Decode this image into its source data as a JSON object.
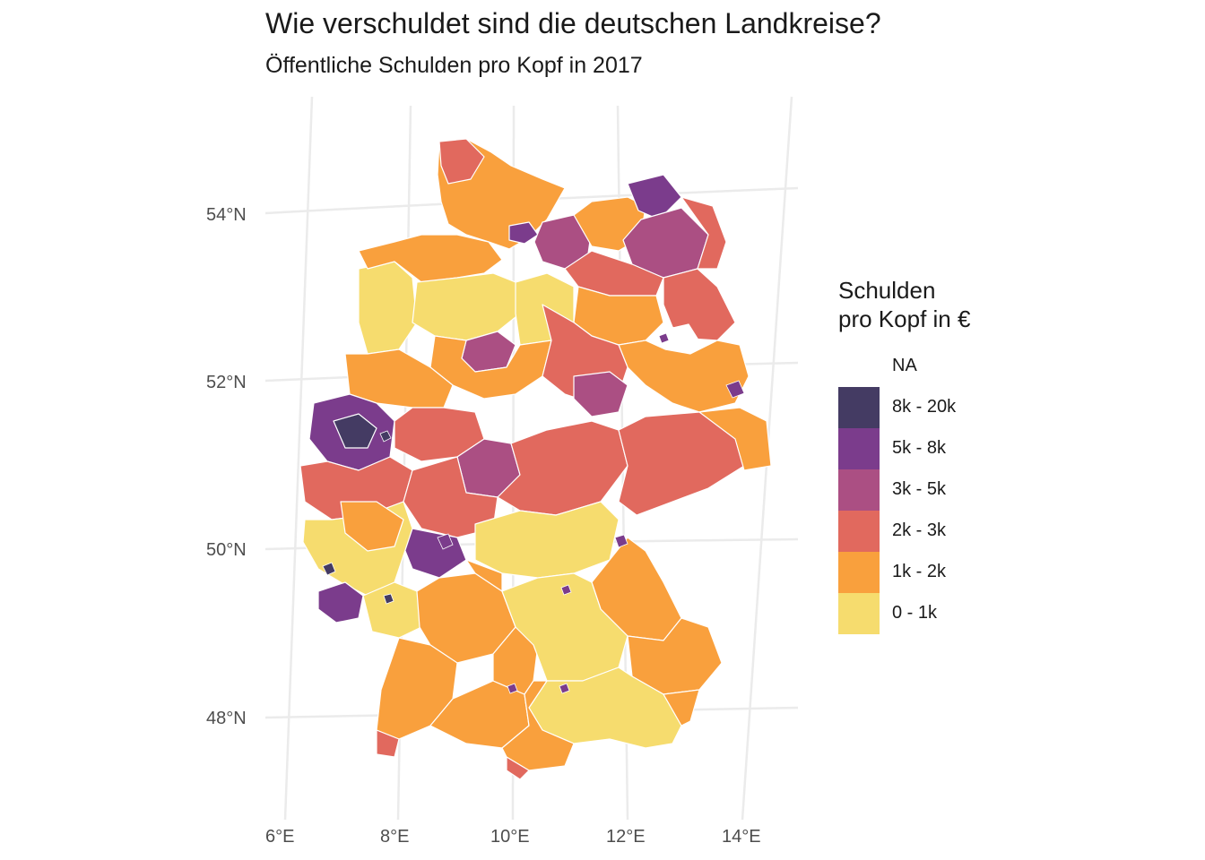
{
  "title": "Wie verschuldet sind die deutschen Landkreise?",
  "subtitle": "Öffentliche Schulden pro Kopf in 2017",
  "legend": {
    "title_line1": "Schulden",
    "title_line2": "pro Kopf in €",
    "items": [
      {
        "label": "NA",
        "color": "#ffffff"
      },
      {
        "label": "8k - 20k",
        "color": "#443b63"
      },
      {
        "label": "5k - 8k",
        "color": "#7b3c8c"
      },
      {
        "label": "3k - 5k",
        "color": "#ab4f83"
      },
      {
        "label": "2k - 3k",
        "color": "#e1695e"
      },
      {
        "label": "1k - 2k",
        "color": "#f9a03d"
      },
      {
        "label": "0 - 1k",
        "color": "#f6dc6e"
      }
    ]
  },
  "axes": {
    "lat_labels": [
      "54°N",
      "52°N",
      "50°N",
      "48°N"
    ],
    "lon_labels": [
      "6°E",
      "8°E",
      "10°E",
      "12°E",
      "14°E"
    ]
  }
}
